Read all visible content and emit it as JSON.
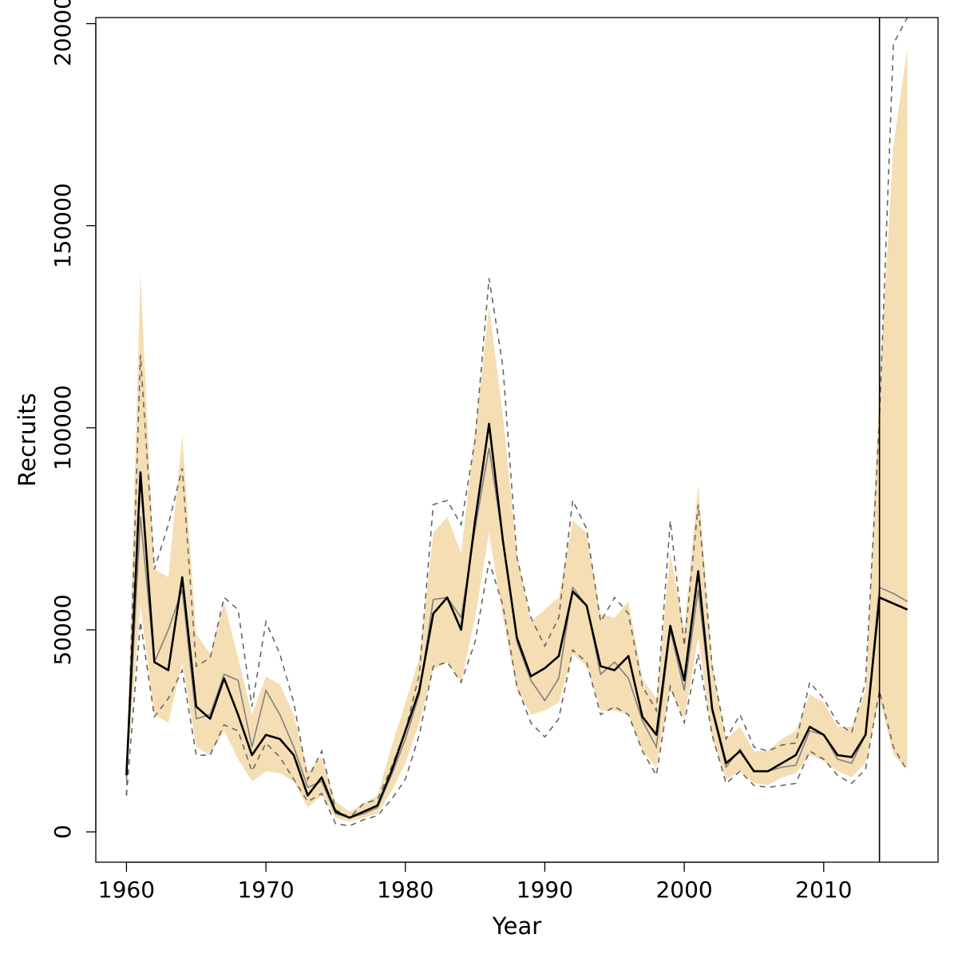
{
  "chart_data": {
    "type": "line",
    "title": "",
    "xlabel": "Year",
    "ylabel": "Recruits",
    "xlim": [
      1957.8,
      2018.2
    ],
    "ylim": [
      -7500,
      201500
    ],
    "x_ticks": [
      1960,
      1970,
      1980,
      1990,
      2000,
      2010
    ],
    "y_ticks": [
      0,
      50000,
      100000,
      150000,
      200000
    ],
    "x_tick_labels": [
      "1960",
      "1970",
      "1980",
      "1990",
      "2000",
      "2010"
    ],
    "y_tick_labels": [
      "0",
      "50000",
      "100000",
      "150000",
      "200000"
    ],
    "grid": false,
    "legend": "none",
    "vline_x": 2014,
    "colors": {
      "band": "#f5deb3",
      "main_line": "#000000",
      "secondary_line": "#808080",
      "dashed_lines": "#666666",
      "vline": "#000000"
    },
    "x": [
      1960,
      1961,
      1962,
      1963,
      1964,
      1965,
      1966,
      1967,
      1968,
      1969,
      1970,
      1971,
      1972,
      1973,
      1974,
      1975,
      1976,
      1977,
      1978,
      1979,
      1980,
      1981,
      1982,
      1983,
      1984,
      1985,
      1986,
      1987,
      1988,
      1989,
      1990,
      1991,
      1992,
      1993,
      1994,
      1995,
      1996,
      1997,
      1998,
      1999,
      2000,
      2001,
      2002,
      2003,
      2004,
      2005,
      2006,
      2007,
      2008,
      2009,
      2010,
      2011,
      2012,
      2013,
      2014,
      2015,
      2016
    ],
    "series": [
      {
        "role": "main",
        "values": [
          14000,
          89000,
          42000,
          40000,
          63000,
          31000,
          28000,
          38000,
          29000,
          19000,
          24000,
          23000,
          19000,
          9000,
          13500,
          5000,
          3500,
          5000,
          6500,
          15000,
          25000,
          35000,
          54000,
          58000,
          50000,
          77000,
          101000,
          72000,
          48000,
          38500,
          40500,
          43500,
          59500,
          56000,
          41000,
          40000,
          43500,
          28500,
          24000,
          51000,
          37500,
          64500,
          30500,
          17000,
          20000,
          15000,
          15000,
          17000,
          19000,
          26000,
          24000,
          19000,
          18500,
          24000,
          58000,
          56500,
          55000
        ]
      },
      {
        "role": "secondary",
        "values": [
          13000,
          78000,
          42000,
          50000,
          60000,
          28000,
          29000,
          39000,
          37500,
          21000,
          35000,
          29000,
          21000,
          11000,
          12500,
          4500,
          3500,
          4500,
          6000,
          14000,
          23000,
          34000,
          57500,
          58000,
          53000,
          75000,
          95000,
          72000,
          47000,
          37500,
          32500,
          38000,
          60500,
          56000,
          39000,
          42000,
          38000,
          27500,
          21000,
          50000,
          35000,
          60000,
          30000,
          16000,
          20500,
          15000,
          15000,
          16000,
          16500,
          25000,
          24000,
          18000,
          17000,
          24000,
          60500,
          59000,
          57000
        ]
      }
    ],
    "band": {
      "upper": [
        14000,
        138000,
        65000,
        63000,
        98000,
        49000,
        44000,
        57000,
        43000,
        29000,
        38500,
        36500,
        29000,
        15000,
        18500,
        7500,
        5000,
        7000,
        9000,
        21000,
        32000,
        43000,
        74000,
        78000,
        69000,
        99000,
        130000,
        103000,
        69000,
        52000,
        55000,
        58000,
        77000,
        74000,
        54000,
        53000,
        57000,
        38000,
        33000,
        69000,
        50000,
        86000,
        42000,
        23000,
        26000,
        20000,
        20000,
        23000,
        25000,
        34000,
        32000,
        26000,
        26000,
        35000,
        110000,
        170000,
        194000
      ],
      "lower": [
        13000,
        56000,
        29000,
        27000,
        42000,
        21000,
        19000,
        25000,
        18000,
        12500,
        15000,
        14500,
        12500,
        6000,
        9000,
        3500,
        2500,
        3500,
        4500,
        10000,
        17000,
        27000,
        40000,
        42000,
        37000,
        53000,
        74000,
        53000,
        35000,
        29000,
        30000,
        32000,
        44000,
        41000,
        30000,
        30000,
        29000,
        20000,
        16000,
        35000,
        28000,
        48000,
        23000,
        13000,
        15000,
        12000,
        11500,
        13500,
        14500,
        19000,
        17500,
        15000,
        13500,
        17000,
        33000,
        19000,
        15500
      ]
    },
    "dashed": {
      "upper": [
        9000,
        118000,
        65000,
        76000,
        90000,
        41000,
        43000,
        58000,
        55000,
        31000,
        52000,
        44000,
        32000,
        13000,
        20000,
        5500,
        3500,
        7000,
        8000,
        16000,
        25000,
        39000,
        81000,
        82000,
        76000,
        97000,
        137000,
        115000,
        68000,
        53000,
        46000,
        53000,
        82000,
        75000,
        52000,
        58000,
        54000,
        36000,
        30000,
        77000,
        46000,
        81000,
        41000,
        23000,
        29000,
        21000,
        20000,
        21500,
        22000,
        37000,
        33000,
        27000,
        24500,
        37000,
        102000,
        195000,
        201500
      ],
      "lower": [
        9000,
        52000,
        28500,
        33000,
        40000,
        19000,
        19000,
        26500,
        25000,
        15000,
        22000,
        18500,
        13000,
        7500,
        9500,
        2000,
        1500,
        3000,
        4000,
        8000,
        13000,
        24000,
        41000,
        42000,
        37000,
        47000,
        67000,
        56000,
        36000,
        27000,
        23500,
        28000,
        45000,
        42000,
        29000,
        31000,
        29000,
        20000,
        14000,
        36000,
        27000,
        44000,
        24000,
        12000,
        15000,
        11500,
        11000,
        11500,
        12000,
        20000,
        18000,
        14000,
        12000,
        15500,
        35000,
        21000,
        15000
      ]
    }
  }
}
